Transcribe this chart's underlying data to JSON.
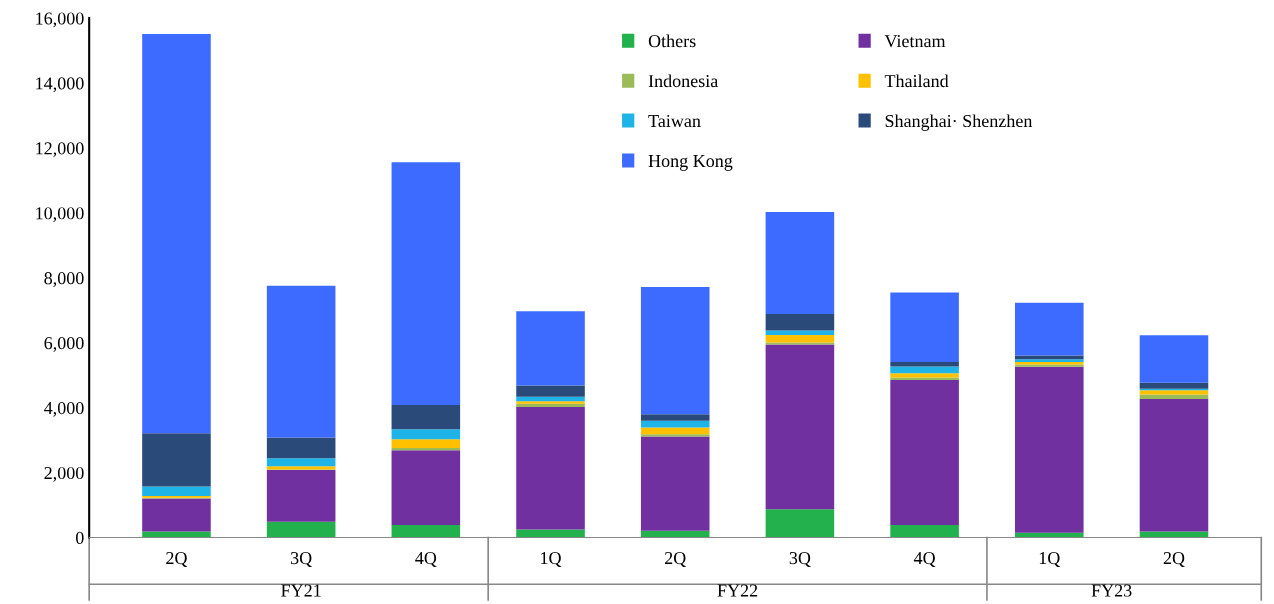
{
  "chart_data": {
    "type": "bar",
    "stacked": true,
    "categories": [
      "2Q",
      "3Q",
      "4Q",
      "1Q",
      "2Q",
      "3Q",
      "4Q",
      "1Q",
      "2Q"
    ],
    "series": [
      {
        "name": "Others",
        "color": "#22b14c",
        "values": [
          190,
          490,
          390,
          250,
          210,
          870,
          390,
          150,
          190
        ]
      },
      {
        "name": "Vietnam",
        "color": "#7030a0",
        "values": [
          1010,
          1590,
          2300,
          3770,
          2900,
          5080,
          4460,
          5110,
          4080
        ]
      },
      {
        "name": "Indonesia",
        "color": "#9bbb59",
        "values": [
          30,
          20,
          70,
          100,
          70,
          60,
          80,
          70,
          140
        ]
      },
      {
        "name": "Thailand",
        "color": "#ffc000",
        "values": [
          50,
          100,
          270,
          80,
          210,
          230,
          130,
          80,
          130
        ]
      },
      {
        "name": "Taiwan",
        "color": "#1fb4e8",
        "values": [
          290,
          240,
          310,
          140,
          210,
          140,
          210,
          80,
          40
        ]
      },
      {
        "name": "Shanghai· Shenzhen",
        "color": "#2a4a7a",
        "values": [
          1640,
          640,
          740,
          340,
          200,
          510,
          140,
          120,
          190
        ]
      },
      {
        "name": "Hong Kong",
        "color": "#3d6bff",
        "values": [
          12300,
          4680,
          7480,
          2290,
          3920,
          3140,
          2140,
          1620,
          1460
        ]
      }
    ],
    "annotations": [
      "FY21",
      "FY22",
      "FY23"
    ],
    "ylim": [
      0,
      16000
    ],
    "yticks": [
      0,
      {
        "value": 2000,
        "label": "2,000"
      },
      {
        "value": 4000,
        "label": "4,000"
      },
      {
        "value": 6000,
        "label": "6,000"
      },
      {
        "value": 8000,
        "label": "8,000"
      },
      {
        "value": 10000,
        "label": "10,000"
      },
      {
        "value": 12000,
        "label": "12,000"
      },
      {
        "value": 14000,
        "label": "14,000"
      },
      {
        "value": 16000,
        "label": "16,000"
      }
    ],
    "grid": false,
    "legend": "top"
  }
}
